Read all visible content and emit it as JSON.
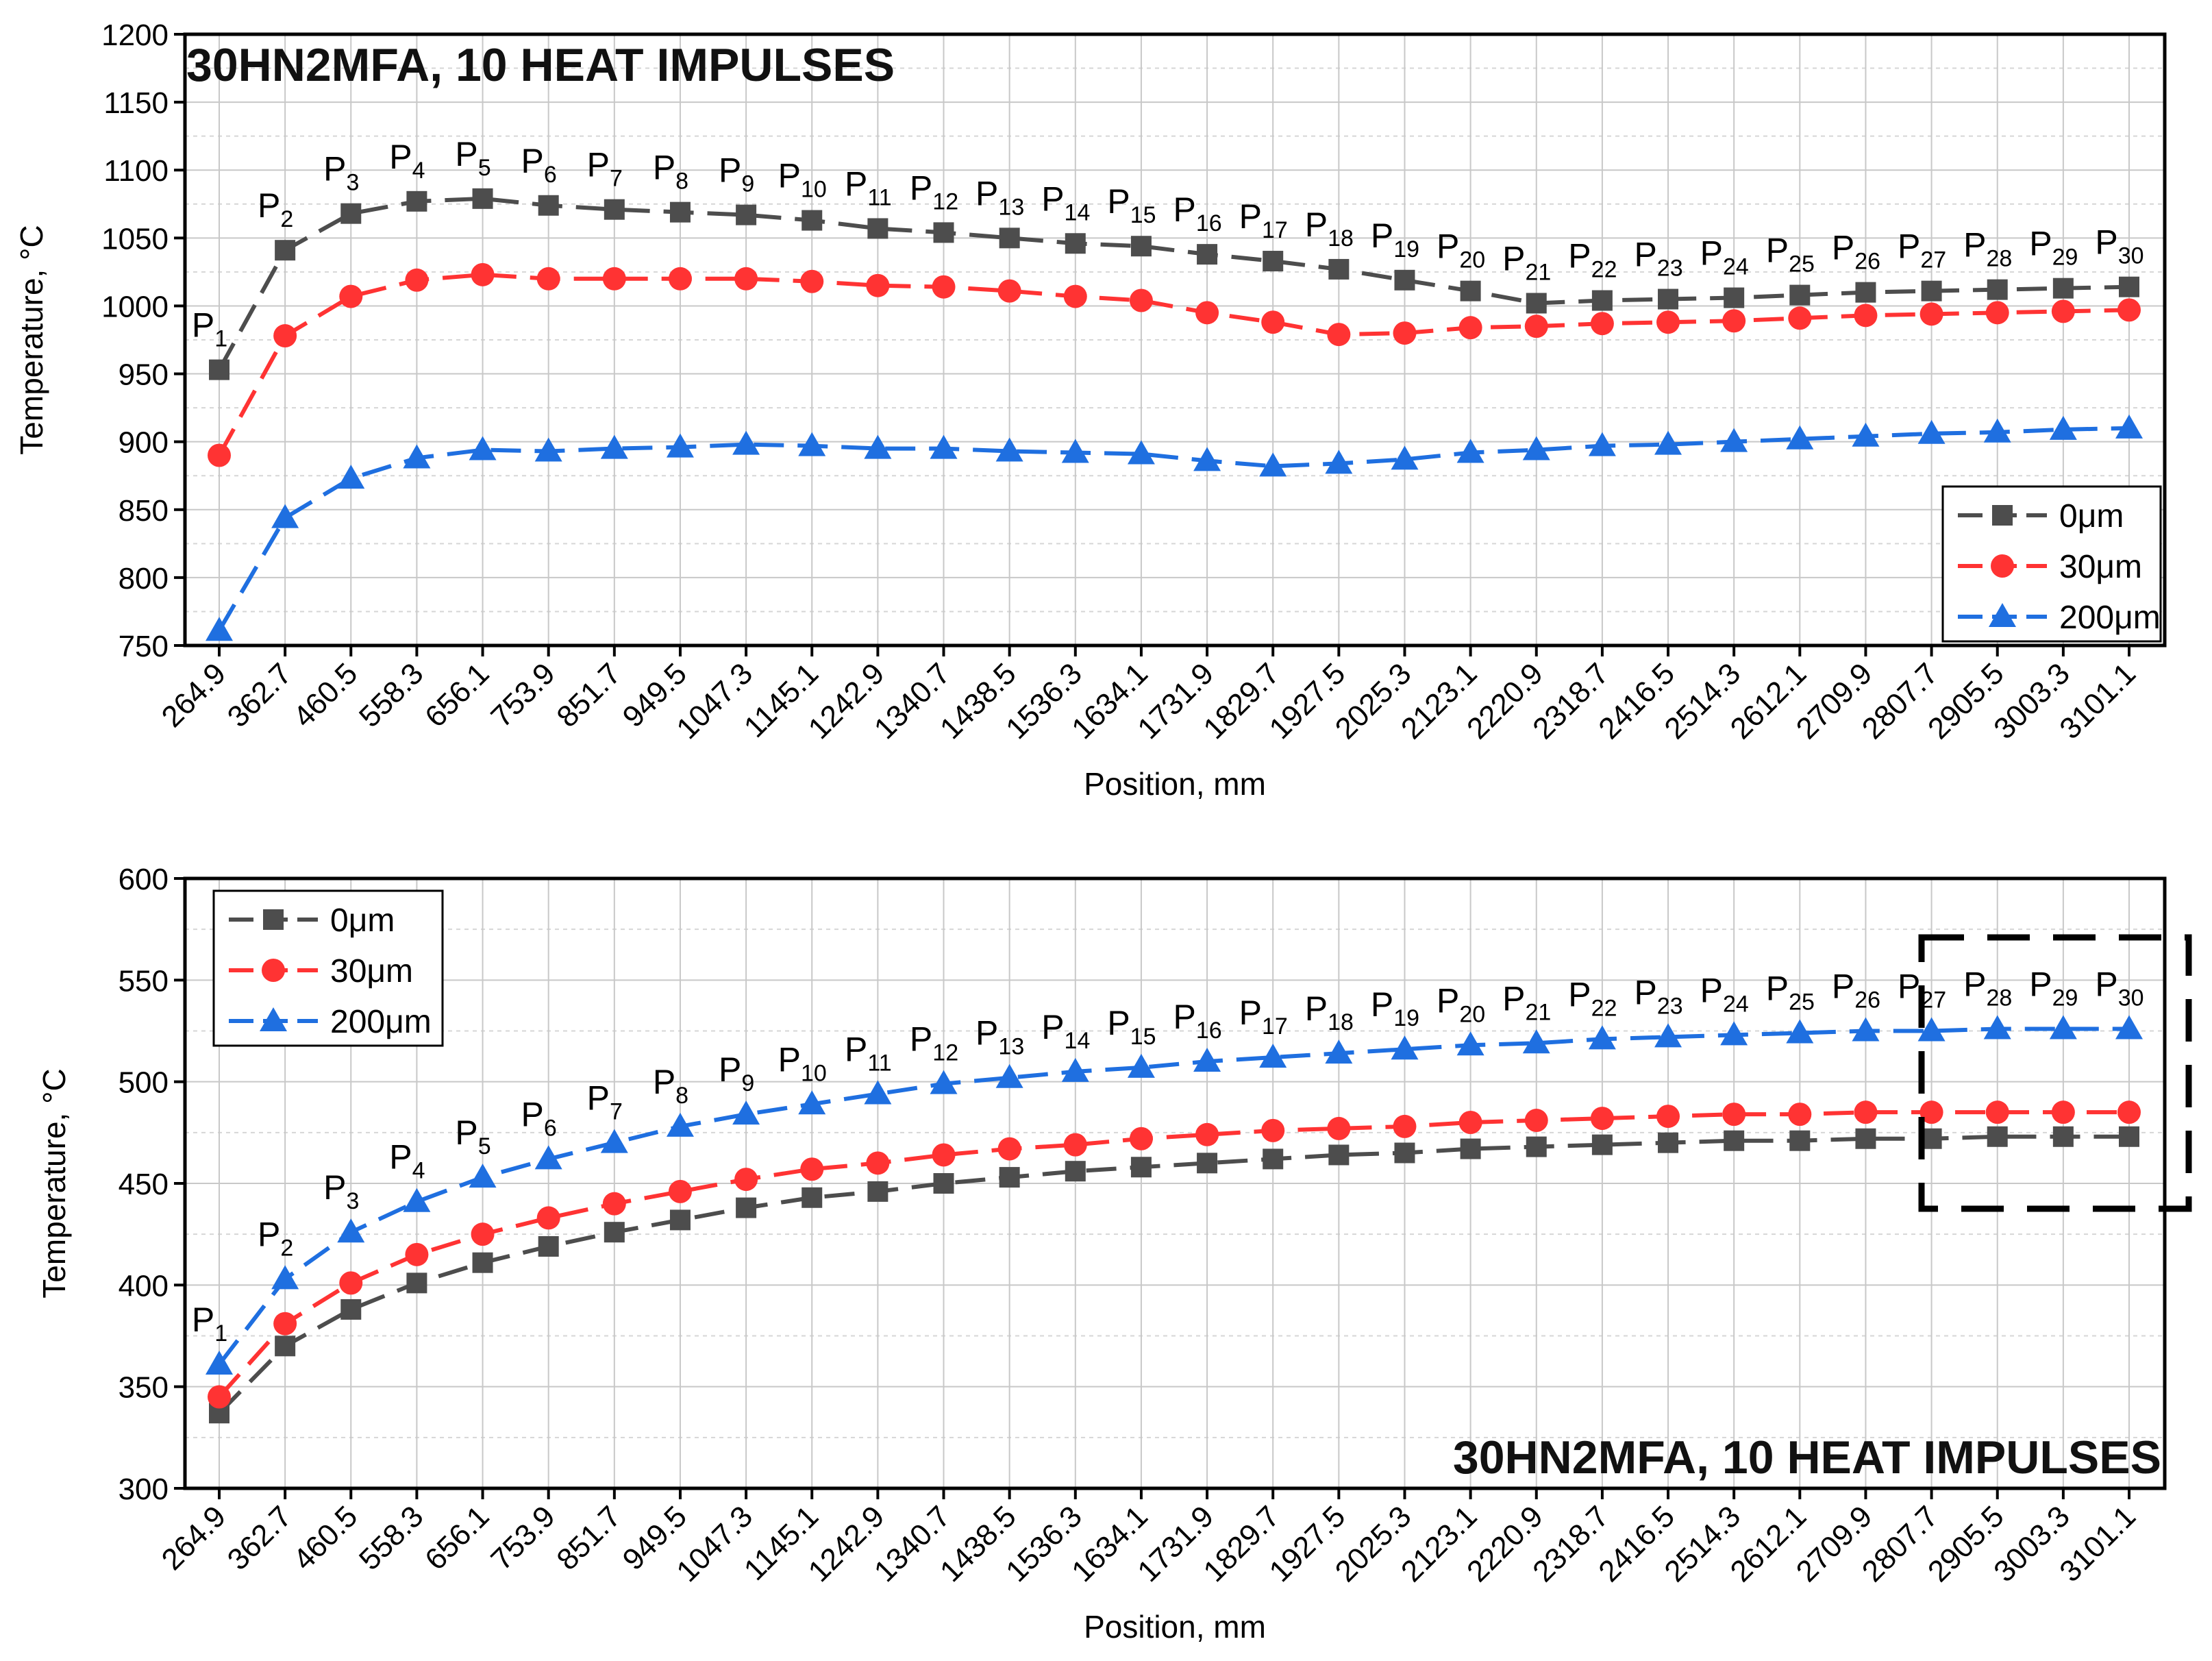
{
  "chart_data": [
    {
      "type": "line",
      "title": "30HN2MFA, 10 HEAT IMPULSES",
      "title_placement": "top-left",
      "xlabel": "Position, mm",
      "ylabel": "Temperature, °C",
      "ylim": [
        750,
        1200
      ],
      "yticks": [
        750,
        800,
        850,
        900,
        950,
        1000,
        1050,
        1100,
        1150,
        1200
      ],
      "grid": true,
      "legend_placement": "bottom-right",
      "categories": [
        "264.9",
        "362.7",
        "460.5",
        "558.3",
        "656.1",
        "753.9",
        "851.7",
        "949.5",
        "1047.3",
        "1145.1",
        "1242.9",
        "1340.7",
        "1438.5",
        "1536.3",
        "1634.1",
        "1731.9",
        "1829.7",
        "1927.5",
        "2025.3",
        "2123.1",
        "2220.9",
        "2318.7",
        "2416.5",
        "2514.3",
        "2612.1",
        "2709.9",
        "2807.7",
        "2905.5",
        "3003.3",
        "3101.1"
      ],
      "point_labels": [
        "1",
        "2",
        "3",
        "4",
        "5",
        "6",
        "7",
        "8",
        "9",
        "10",
        "11",
        "12",
        "13",
        "14",
        "15",
        "16",
        "17",
        "18",
        "19",
        "20",
        "21",
        "22",
        "23",
        "24",
        "25",
        "26",
        "27",
        "28",
        "29",
        "30"
      ],
      "point_label_prefix": "P",
      "point_labels_follow_series": 0,
      "series": [
        {
          "name": "0μm",
          "marker": "square",
          "color": "#4d4d4d",
          "values": [
            953,
            1041,
            1068,
            1077,
            1079,
            1074,
            1071,
            1069,
            1067,
            1063,
            1057,
            1054,
            1050,
            1046,
            1044,
            1038,
            1033,
            1027,
            1019,
            1011,
            1002,
            1004,
            1005,
            1006,
            1008,
            1010,
            1011,
            1012,
            1013,
            1014
          ]
        },
        {
          "name": "30μm",
          "marker": "circle",
          "color": "#ff3333",
          "values": [
            890,
            978,
            1007,
            1019,
            1023,
            1020,
            1020,
            1020,
            1020,
            1018,
            1015,
            1014,
            1011,
            1007,
            1004,
            995,
            988,
            979,
            980,
            984,
            985,
            987,
            988,
            989,
            991,
            993,
            994,
            995,
            996,
            997
          ]
        },
        {
          "name": "200μm",
          "marker": "triangle",
          "color": "#1f6fe0",
          "values": [
            761,
            844,
            873,
            888,
            894,
            893,
            895,
            896,
            898,
            897,
            895,
            895,
            893,
            892,
            891,
            886,
            882,
            884,
            887,
            892,
            894,
            897,
            898,
            900,
            902,
            904,
            906,
            907,
            909,
            910
          ]
        }
      ]
    },
    {
      "type": "line",
      "title": "30HN2MFA, 10 HEAT IMPULSES",
      "title_placement": "bottom-right",
      "xlabel": "Position, mm",
      "ylabel": "Temperature, °C",
      "ylim": [
        300,
        600
      ],
      "yticks": [
        300,
        350,
        400,
        450,
        500,
        550,
        600
      ],
      "grid": true,
      "legend_placement": "top-left",
      "annotation": "dashed box highlighting points 27 to 30",
      "categories": [
        "264.9",
        "362.7",
        "460.5",
        "558.3",
        "656.1",
        "753.9",
        "851.7",
        "949.5",
        "1047.3",
        "1145.1",
        "1242.9",
        "1340.7",
        "1438.5",
        "1536.3",
        "1634.1",
        "1731.9",
        "1829.7",
        "1927.5",
        "2025.3",
        "2123.1",
        "2220.9",
        "2318.7",
        "2416.5",
        "2514.3",
        "2612.1",
        "2709.9",
        "2807.7",
        "2905.5",
        "3003.3",
        "3101.1"
      ],
      "point_labels": [
        "1",
        "2",
        "3",
        "4",
        "5",
        "6",
        "7",
        "8",
        "9",
        "10",
        "11",
        "12",
        "13",
        "14",
        "15",
        "16",
        "17",
        "18",
        "19",
        "20",
        "21",
        "22",
        "23",
        "24",
        "25",
        "26",
        "27",
        "28",
        "29",
        "30"
      ],
      "point_label_prefix": "P",
      "point_labels_follow_series": 2,
      "series": [
        {
          "name": "0μm",
          "marker": "square",
          "color": "#4d4d4d",
          "values": [
            337,
            370,
            388,
            401,
            411,
            419,
            426,
            432,
            438,
            443,
            446,
            450,
            453,
            456,
            458,
            460,
            462,
            464,
            465,
            467,
            468,
            469,
            470,
            471,
            471,
            472,
            472,
            473,
            473,
            473
          ]
        },
        {
          "name": "30μm",
          "marker": "circle",
          "color": "#ff3333",
          "values": [
            345,
            381,
            401,
            415,
            425,
            433,
            440,
            446,
            452,
            457,
            460,
            464,
            467,
            469,
            472,
            474,
            476,
            477,
            478,
            480,
            481,
            482,
            483,
            484,
            484,
            485,
            485,
            485,
            485,
            485
          ]
        },
        {
          "name": "200μm",
          "marker": "triangle",
          "color": "#1f6fe0",
          "values": [
            361,
            403,
            426,
            441,
            453,
            462,
            470,
            478,
            484,
            489,
            494,
            499,
            502,
            505,
            507,
            510,
            512,
            514,
            516,
            518,
            519,
            521,
            522,
            523,
            524,
            525,
            525,
            526,
            526,
            526
          ]
        }
      ]
    }
  ]
}
